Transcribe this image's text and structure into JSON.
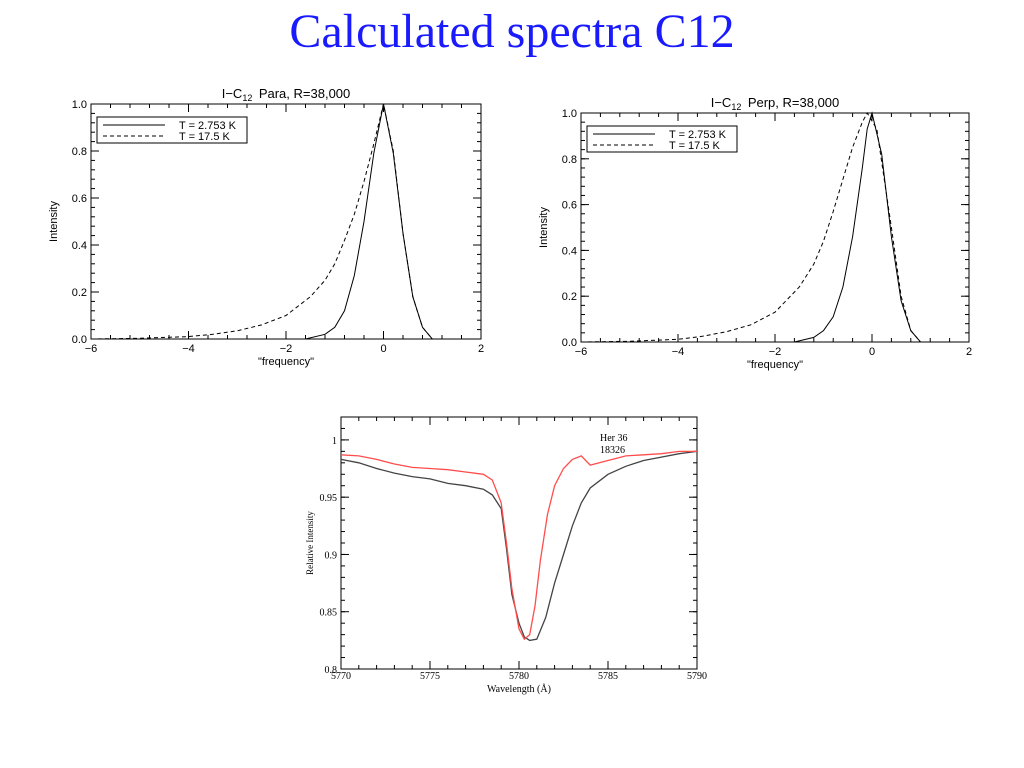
{
  "slide": {
    "title": "Calculated spectra C12"
  },
  "chart_data": [
    {
      "type": "line",
      "title_prefix": "I−C",
      "title_subscript": "12",
      "title_suffix": "Para, R=38,000",
      "xlabel": "\"frequency\"",
      "ylabel": "Intensity",
      "xlim": [
        -6,
        2
      ],
      "ylim": [
        0,
        1
      ],
      "xticks": [
        "−6",
        "−4",
        "−2",
        "0",
        "2"
      ],
      "yticks": [
        "0.0",
        "0.2",
        "0.4",
        "0.6",
        "0.8",
        "1.0"
      ],
      "legend_position": "top-left",
      "series": [
        {
          "name": "T = 2.753 K",
          "style": "solid",
          "x": [
            -6,
            -1.6,
            -1.2,
            -1.0,
            -0.8,
            -0.6,
            -0.4,
            -0.2,
            0,
            0.2,
            0.4,
            0.6,
            0.8,
            1.0,
            2
          ],
          "y": [
            0,
            0.0,
            0.02,
            0.05,
            0.12,
            0.27,
            0.5,
            0.79,
            1.0,
            0.79,
            0.45,
            0.18,
            0.05,
            0.0,
            0
          ]
        },
        {
          "name": "T = 17.5 K",
          "style": "dashed",
          "x": [
            -6,
            -5,
            -4,
            -3.5,
            -3,
            -2.5,
            -2,
            -1.5,
            -1.2,
            -1.0,
            -0.8,
            -0.6,
            -0.4,
            -0.2,
            0,
            0.2,
            0.4,
            0.6,
            0.8,
            1.0,
            2
          ],
          "y": [
            0,
            0.003,
            0.01,
            0.02,
            0.035,
            0.06,
            0.1,
            0.18,
            0.25,
            0.32,
            0.42,
            0.53,
            0.67,
            0.83,
            1.0,
            0.8,
            0.45,
            0.18,
            0.05,
            0.0,
            0
          ]
        }
      ]
    },
    {
      "type": "line",
      "title_prefix": "I−C",
      "title_subscript": "12",
      "title_suffix": "Perp, R=38,000",
      "xlabel": "\"frequency\"",
      "ylabel": "Intensity",
      "xlim": [
        -6,
        2
      ],
      "ylim": [
        0,
        1
      ],
      "xticks": [
        "−6",
        "−4",
        "−2",
        "0",
        "2"
      ],
      "yticks": [
        "0.0",
        "0.2",
        "0.4",
        "0.6",
        "0.8",
        "1.0"
      ],
      "legend_position": "top-left",
      "series": [
        {
          "name": "T = 2.753 K",
          "style": "solid",
          "x": [
            -6,
            -1.6,
            -1.2,
            -1.0,
            -0.8,
            -0.6,
            -0.4,
            -0.2,
            -0.1,
            0,
            0.2,
            0.4,
            0.6,
            0.8,
            1.0,
            2
          ],
          "y": [
            0,
            0.0,
            0.02,
            0.05,
            0.11,
            0.24,
            0.46,
            0.76,
            0.93,
            1.0,
            0.82,
            0.46,
            0.18,
            0.05,
            0.0,
            0
          ]
        },
        {
          "name": "T = 17.5 K",
          "style": "dashed",
          "x": [
            -6,
            -5,
            -4,
            -3.5,
            -3,
            -2.5,
            -2,
            -1.5,
            -1.2,
            -1.0,
            -0.8,
            -0.6,
            -0.4,
            -0.2,
            -0.1,
            0.1,
            0.4,
            0.6,
            0.8,
            1.0,
            2
          ],
          "y": [
            0,
            0.003,
            0.012,
            0.025,
            0.045,
            0.075,
            0.13,
            0.24,
            0.34,
            0.44,
            0.57,
            0.71,
            0.85,
            0.96,
            1.0,
            0.93,
            0.5,
            0.2,
            0.05,
            0.0,
            0
          ]
        }
      ]
    },
    {
      "type": "line",
      "xlabel": "Wavelength (Å)",
      "ylabel": "Relative Intensity",
      "xlim": [
        5770,
        5790
      ],
      "ylim": [
        0.8,
        1.02
      ],
      "xticks": [
        "5770",
        "5775",
        "5780",
        "5785",
        "5790"
      ],
      "yticks": [
        "0.8",
        "0.85",
        "0.9",
        "0.95",
        "1"
      ],
      "legend_position": "top-right",
      "series": [
        {
          "name": "Her 36",
          "color": "#444444",
          "x": [
            5770,
            5771,
            5772,
            5773,
            5774,
            5775,
            5776,
            5777,
            5778,
            5778.5,
            5779,
            5779.3,
            5779.6,
            5780,
            5780.3,
            5780.6,
            5781,
            5781.5,
            5782,
            5782.5,
            5783,
            5783.5,
            5784,
            5785,
            5786,
            5787,
            5788,
            5789,
            5790
          ],
          "y": [
            0.983,
            0.98,
            0.975,
            0.971,
            0.968,
            0.966,
            0.962,
            0.96,
            0.957,
            0.952,
            0.94,
            0.905,
            0.865,
            0.84,
            0.828,
            0.825,
            0.826,
            0.845,
            0.875,
            0.9,
            0.925,
            0.945,
            0.958,
            0.97,
            0.977,
            0.982,
            0.985,
            0.988,
            0.99
          ]
        },
        {
          "name": "18326",
          "color": "#ff4d4d",
          "x": [
            5770,
            5771,
            5772,
            5773,
            5774,
            5775,
            5776,
            5777,
            5778,
            5778.5,
            5779,
            5779.3,
            5779.6,
            5780,
            5780.3,
            5780.6,
            5780.9,
            5781.2,
            5781.6,
            5782,
            5782.5,
            5783,
            5783.5,
            5784,
            5785,
            5786,
            5787,
            5788,
            5789,
            5790
          ],
          "y": [
            0.987,
            0.986,
            0.983,
            0.979,
            0.976,
            0.975,
            0.974,
            0.972,
            0.97,
            0.965,
            0.945,
            0.91,
            0.87,
            0.835,
            0.826,
            0.83,
            0.855,
            0.895,
            0.935,
            0.96,
            0.975,
            0.983,
            0.986,
            0.978,
            0.982,
            0.986,
            0.987,
            0.988,
            0.99,
            0.99
          ]
        }
      ]
    }
  ]
}
